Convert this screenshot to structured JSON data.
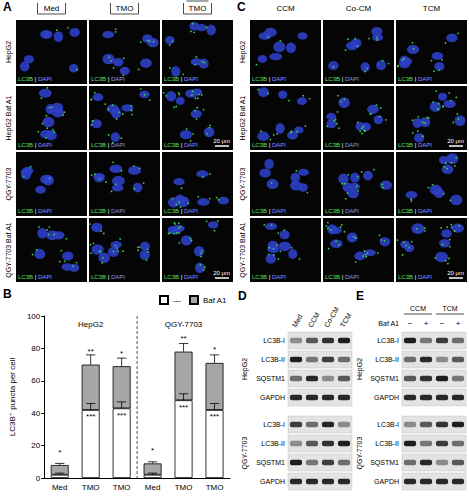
{
  "chart_data": {
    "type": "bar",
    "panel_label": "B",
    "stacked": true,
    "y_label": "LC3B⁺ puncta per cell",
    "categories": [
      "Med",
      "TMO",
      "TMO",
      "Med",
      "TMO",
      "TMO"
    ],
    "group_labels": [
      "HepG2",
      "QGY-7703"
    ],
    "series": [
      {
        "name": "---",
        "color": "#ffffff",
        "values": [
          2,
          42,
          43,
          2,
          48,
          42
        ],
        "errors": [
          1,
          4,
          4,
          1,
          4,
          4
        ],
        "annotations": [
          null,
          "***",
          "***",
          null,
          "***",
          "***"
        ]
      },
      {
        "name": "Baf A1",
        "color": "#a6a6a6",
        "values": [
          6,
          28,
          26,
          7,
          30,
          29
        ],
        "errors": [
          1,
          6,
          5,
          1,
          5,
          5
        ],
        "annotations": [
          "*",
          "**",
          "*",
          "*",
          "**",
          "*"
        ]
      }
    ],
    "ylim": [
      0,
      100
    ],
    "yticks": [
      0,
      20,
      40,
      60,
      80,
      100
    ],
    "grid": false,
    "legend": "top-right"
  },
  "panels": {
    "A": {
      "label": "A",
      "columns": [
        "Med",
        "TMO",
        "TMO"
      ],
      "rows": [
        "HepG2",
        "HepG2 Baf A1",
        "QGY-7703",
        "QGY-7703 Baf A1"
      ],
      "stain_label": [
        "LC3B",
        "|",
        "DAPI"
      ],
      "scale_bar": "20 μm"
    },
    "C": {
      "label": "C",
      "columns": [
        "CCM",
        "Co-CM",
        "TCM"
      ],
      "rows": [
        "HepG2",
        "HepG2 Baf A1",
        "QGY-7703",
        "QGY-7703 Baf A1"
      ],
      "stain_label": [
        "LC3B",
        "|",
        "DAPI"
      ],
      "scale_bar": "20 μm"
    },
    "D": {
      "label": "D",
      "columns": [
        "Med",
        "CCM",
        "Co-CM",
        "TCM"
      ],
      "groups": [
        "HepG2",
        "QGY-7703"
      ],
      "rows": [
        "LC3B-I",
        "LC3B-II",
        "SQSTM1",
        "GAPDH"
      ]
    },
    "E": {
      "label": "E",
      "conditions": [
        "CCM",
        "TCM"
      ],
      "treatment": "Baf A1",
      "treatment_marks": [
        "−",
        "+",
        "−",
        "+"
      ],
      "groups": [
        "HepG2",
        "QGY-7703"
      ],
      "rows": [
        "LC3B-I",
        "LC3B-II",
        "SQSTM1",
        "GAPDH"
      ]
    }
  }
}
